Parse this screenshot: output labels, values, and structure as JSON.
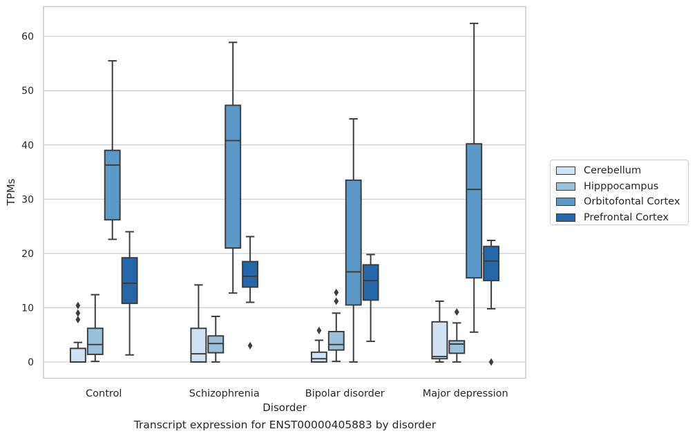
{
  "chart_data": {
    "type": "boxplot",
    "xlabel": "Disorder",
    "ylabel": "TPMs",
    "caption": "Transcript expression for ENST00000405883 by disorder",
    "ylim": [
      -3,
      65.5
    ],
    "yticks": [
      0,
      10,
      20,
      30,
      40,
      50,
      60
    ],
    "grid": "horizontal",
    "legend_position": "right",
    "categories": [
      "Control",
      "Schizophrenia",
      "Bipolar disorder",
      "Major depression"
    ],
    "series": [
      {
        "name": "Cerebellum",
        "color": "#d0e1f2",
        "boxes": [
          {
            "whisker_low": 0,
            "q1": 0,
            "median": 0,
            "q3": 2.5,
            "whisker_high": 3.6,
            "outliers": [
              7.8,
              9.0,
              10.4
            ]
          },
          {
            "whisker_low": 0,
            "q1": 0,
            "median": 1.5,
            "q3": 6.2,
            "whisker_high": 14.2,
            "outliers": []
          },
          {
            "whisker_low": 0,
            "q1": 0,
            "median": 0.6,
            "q3": 1.8,
            "whisker_high": 4.0,
            "outliers": [
              5.8
            ]
          },
          {
            "whisker_low": 0,
            "q1": 0.6,
            "median": 1.0,
            "q3": 7.4,
            "whisker_high": 11.2,
            "outliers": []
          }
        ]
      },
      {
        "name": "Hipppocampus",
        "color": "#9ac2dd",
        "boxes": [
          {
            "whisker_low": 0.1,
            "q1": 1.4,
            "median": 3.2,
            "q3": 6.2,
            "whisker_high": 12.4,
            "outliers": []
          },
          {
            "whisker_low": 0,
            "q1": 1.7,
            "median": 3.4,
            "q3": 4.8,
            "whisker_high": 8.4,
            "outliers": []
          },
          {
            "whisker_low": 0.1,
            "q1": 2.2,
            "median": 3.2,
            "q3": 5.6,
            "whisker_high": 9.0,
            "outliers": [
              11.2,
              12.8
            ]
          },
          {
            "whisker_low": 0,
            "q1": 1.6,
            "median": 3.3,
            "q3": 3.9,
            "whisker_high": 7.2,
            "outliers": [
              9.2
            ]
          }
        ]
      },
      {
        "name": "Orbitofontal Cortex",
        "color": "#5b9ac8",
        "boxes": [
          {
            "whisker_low": 22.6,
            "q1": 26.2,
            "median": 36.3,
            "q3": 39.0,
            "whisker_high": 55.5,
            "outliers": []
          },
          {
            "whisker_low": 12.7,
            "q1": 21.0,
            "median": 40.8,
            "q3": 47.3,
            "whisker_high": 58.9,
            "outliers": []
          },
          {
            "whisker_low": 0,
            "q1": 10.5,
            "median": 16.6,
            "q3": 33.5,
            "whisker_high": 44.8,
            "outliers": []
          },
          {
            "whisker_low": 5.5,
            "q1": 15.5,
            "median": 31.8,
            "q3": 40.2,
            "whisker_high": 62.4,
            "outliers": []
          }
        ]
      },
      {
        "name": "Prefrontal Cortex",
        "color": "#2566a8",
        "boxes": [
          {
            "whisker_low": 1.3,
            "q1": 10.8,
            "median": 14.5,
            "q3": 19.2,
            "whisker_high": 24.0,
            "outliers": []
          },
          {
            "whisker_low": 11.0,
            "q1": 13.8,
            "median": 15.8,
            "q3": 18.5,
            "whisker_high": 23.1,
            "outliers": [
              3.0
            ]
          },
          {
            "whisker_low": 3.8,
            "q1": 11.4,
            "median": 15.0,
            "q3": 17.9,
            "whisker_high": 19.8,
            "outliers": []
          },
          {
            "whisker_low": 9.8,
            "q1": 15.0,
            "median": 18.6,
            "q3": 21.3,
            "whisker_high": 22.4,
            "outliers": [
              0
            ]
          }
        ]
      }
    ]
  }
}
